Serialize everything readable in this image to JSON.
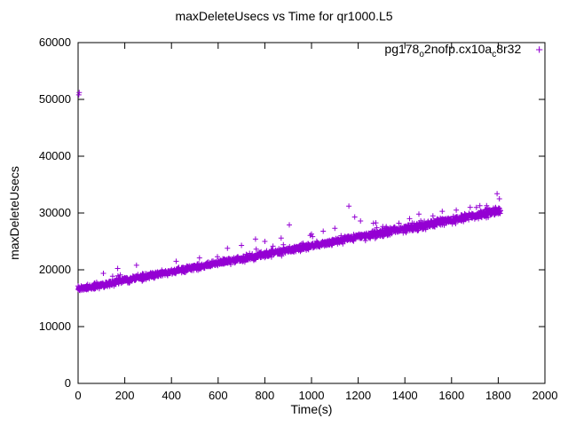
{
  "chart_data": {
    "type": "scatter",
    "title": "maxDeleteUsecs vs Time for qr1000.L5",
    "xlabel": "Time(s)",
    "ylabel": "maxDeleteUsecs",
    "xlim": [
      0,
      2000
    ],
    "ylim": [
      0,
      60000
    ],
    "xticks": [
      0,
      200,
      400,
      600,
      800,
      1000,
      1200,
      1400,
      1600,
      1800,
      2000
    ],
    "yticks": [
      0,
      10000,
      20000,
      30000,
      40000,
      50000,
      60000
    ],
    "grid": false,
    "legend_position": "top-right-inside",
    "marker": "+",
    "marker_color": "#9400d3",
    "legend": {
      "label_plain": "pg178_o2nofp.cx10a_c8r32",
      "p1": "pg178",
      "s1": "o",
      "p2": "2nofp.cx10a",
      "s2": "c",
      "p3": "8r32",
      "marker": "+"
    },
    "series": [
      {
        "name": "pg178_o2nofp.cx10a_c8r32",
        "description": "dense rising band of per-second samples",
        "band": {
          "x_start": 0,
          "x_end": 1810,
          "y_start": 16600,
          "y_end": 30400,
          "noise_halfwidth": 750,
          "noise_growth": 0.4,
          "points": 1800,
          "seed": 1234,
          "upper_tail_prob": 0.015,
          "upper_tail_max": 2200
        },
        "outliers": [
          [
            3,
            50800
          ],
          [
            5,
            51200
          ],
          [
            250,
            20800
          ],
          [
            420,
            21500
          ],
          [
            520,
            22100
          ],
          [
            640,
            23800
          ],
          [
            700,
            24300
          ],
          [
            760,
            25400
          ],
          [
            800,
            25000
          ],
          [
            870,
            25600
          ],
          [
            905,
            27900
          ],
          [
            1000,
            26300
          ],
          [
            1050,
            26800
          ],
          [
            1100,
            27300
          ],
          [
            1160,
            31200
          ],
          [
            1185,
            29300
          ],
          [
            1210,
            28600
          ],
          [
            1280,
            27400
          ],
          [
            1320,
            27600
          ],
          [
            1420,
            29000
          ],
          [
            1460,
            29800
          ],
          [
            1520,
            29500
          ],
          [
            1560,
            30300
          ],
          [
            1620,
            30500
          ],
          [
            1680,
            31000
          ],
          [
            1750,
            31300
          ],
          [
            1795,
            33400
          ],
          [
            1805,
            32500
          ]
        ]
      }
    ]
  }
}
